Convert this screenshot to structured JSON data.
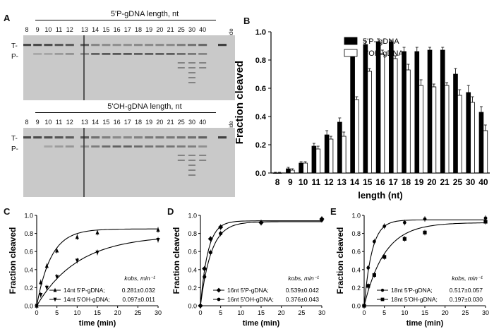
{
  "panels": {
    "a": "A",
    "b": "B",
    "c": "C",
    "d": "D",
    "e": "E"
  },
  "gels": [
    {
      "title": "5'P-gDNA length, nt",
      "lanes": [
        "8",
        "9",
        "10",
        "11",
        "12",
        "13",
        "14",
        "15",
        "16",
        "17",
        "18",
        "19",
        "20",
        "21",
        "25",
        "30",
        "40"
      ],
      "no_guide": "no guide",
      "bands": {
        "t": "T-",
        "p": "P-"
      }
    },
    {
      "title": "5'OH-gDNA length, nt",
      "lanes": [
        "8",
        "9",
        "10",
        "11",
        "12",
        "13",
        "14",
        "15",
        "16",
        "17",
        "18",
        "19",
        "20",
        "21",
        "25",
        "30",
        "40"
      ],
      "no_guide": "no guide",
      "bands": {
        "t": "T-",
        "p": "P-"
      }
    }
  ],
  "chart_data": [
    {
      "type": "bar",
      "panel": "B",
      "ylabel": "Fraction cleaved",
      "xlabel": "length (nt)",
      "ylim": [
        0,
        1.0
      ],
      "yticks": [
        "0.0",
        "0.2",
        "0.4",
        "0.6",
        "0.8",
        "1.0"
      ],
      "categories": [
        "8",
        "9",
        "10",
        "11",
        "12",
        "13",
        "14",
        "15",
        "16",
        "17",
        "18",
        "19",
        "20",
        "21",
        "25",
        "30",
        "40"
      ],
      "legend_position": "top-right",
      "series": [
        {
          "name": "5'P- gDNA",
          "color": "#000000",
          "values": [
            0.0,
            0.03,
            0.07,
            0.19,
            0.27,
            0.36,
            0.83,
            0.91,
            0.93,
            0.93,
            0.86,
            0.86,
            0.87,
            0.87,
            0.7,
            0.57,
            0.43
          ],
          "errors": [
            0.005,
            0.01,
            0.01,
            0.02,
            0.03,
            0.03,
            0.02,
            0.02,
            0.02,
            0.01,
            0.03,
            0.03,
            0.02,
            0.02,
            0.04,
            0.05,
            0.04
          ]
        },
        {
          "name": "5'OH-gDNA",
          "color": "#ffffff",
          "values": [
            0.0,
            0.02,
            0.07,
            0.17,
            0.24,
            0.26,
            0.52,
            0.72,
            0.84,
            0.81,
            0.73,
            0.62,
            0.61,
            0.62,
            0.55,
            0.5,
            0.3
          ],
          "errors": [
            0.005,
            0.01,
            0.01,
            0.02,
            0.02,
            0.03,
            0.02,
            0.02,
            0.03,
            0.02,
            0.04,
            0.04,
            0.02,
            0.02,
            0.04,
            0.04,
            0.04
          ]
        }
      ]
    },
    {
      "type": "scatter",
      "panel": "C",
      "ylabel": "Fraction cleaved",
      "xlabel": "time (min)",
      "xlim": [
        0,
        30
      ],
      "ylim": [
        0,
        1.0
      ],
      "xticks": [
        "0",
        "5",
        "10",
        "15",
        "20",
        "25",
        "30"
      ],
      "yticks": [
        "0.0",
        "0.2",
        "0.4",
        "0.6",
        "0.8",
        "1.0"
      ],
      "kobs_header": "kobs, min⁻¹",
      "series": [
        {
          "name": "14nt 5'P-gDNA;",
          "kobs": "0.281±0.032",
          "marker": "triangle-up",
          "x": [
            0,
            1,
            2.5,
            5,
            10,
            15,
            30
          ],
          "y": [
            0.0,
            0.26,
            0.44,
            0.61,
            0.76,
            0.81,
            0.84
          ],
          "ymax": 0.85,
          "k": 0.281
        },
        {
          "name": "14nt 5'OH-gDNA;",
          "kobs": "0.097±0.011",
          "marker": "triangle-down",
          "x": [
            0,
            1,
            2.5,
            5,
            10,
            15,
            30
          ],
          "y": [
            0.0,
            0.12,
            0.2,
            0.32,
            0.5,
            0.59,
            0.73
          ],
          "ymax": 0.78,
          "k": 0.097
        }
      ]
    },
    {
      "type": "scatter",
      "panel": "D",
      "ylabel": "Fraction cleaved",
      "xlabel": "time (min)",
      "xlim": [
        0,
        30
      ],
      "ylim": [
        0,
        1.0
      ],
      "xticks": [
        "0",
        "5",
        "10",
        "15",
        "20",
        "25",
        "30"
      ],
      "yticks": [
        "0.0",
        "0.2",
        "0.4",
        "0.6",
        "0.8",
        "1.0"
      ],
      "kobs_header": "kobs, min⁻¹",
      "series": [
        {
          "name": "16nt 5'P-gDNA;",
          "kobs": "0.539±0.042",
          "marker": "diamond",
          "x": [
            0,
            1,
            2.5,
            5,
            15,
            30
          ],
          "y": [
            0.0,
            0.41,
            0.74,
            0.87,
            0.92,
            0.96
          ],
          "ymax": 0.94,
          "k": 0.539
        },
        {
          "name": "16nt 5'OH-gDNA;",
          "kobs": "0.376±0.043",
          "marker": "circle",
          "x": [
            0,
            1,
            2.5,
            5,
            15,
            30
          ],
          "y": [
            0.0,
            0.32,
            0.59,
            0.8,
            0.92,
            0.95
          ],
          "ymax": 0.93,
          "k": 0.376
        }
      ]
    },
    {
      "type": "scatter",
      "panel": "E",
      "ylabel": "Fraction cleaved",
      "xlabel": "time (min)",
      "xlim": [
        0,
        30
      ],
      "ylim": [
        0,
        1.0
      ],
      "xticks": [
        "0",
        "5",
        "10",
        "15",
        "20",
        "25",
        "30"
      ],
      "yticks": [
        "0.0",
        "0.2",
        "0.4",
        "0.6",
        "0.8",
        "1.0"
      ],
      "kobs_header": "kobs, min⁻¹",
      "series": [
        {
          "name": "18nt 5'P-gDNA;",
          "kobs": "0.517±0.057",
          "marker": "hexagon",
          "x": [
            0,
            1,
            2.5,
            5,
            10,
            15,
            30
          ],
          "y": [
            0.0,
            0.42,
            0.71,
            0.88,
            0.92,
            0.96,
            0.97
          ],
          "ymax": 0.95,
          "k": 0.517
        },
        {
          "name": "18nt 5'OH-gDNA;",
          "kobs": "0.197±0.030",
          "marker": "square",
          "x": [
            0,
            1,
            2.5,
            5,
            10,
            15,
            30
          ],
          "y": [
            0.0,
            0.22,
            0.34,
            0.54,
            0.74,
            0.81,
            0.93
          ],
          "ymax": 0.92,
          "k": 0.197
        }
      ]
    }
  ]
}
